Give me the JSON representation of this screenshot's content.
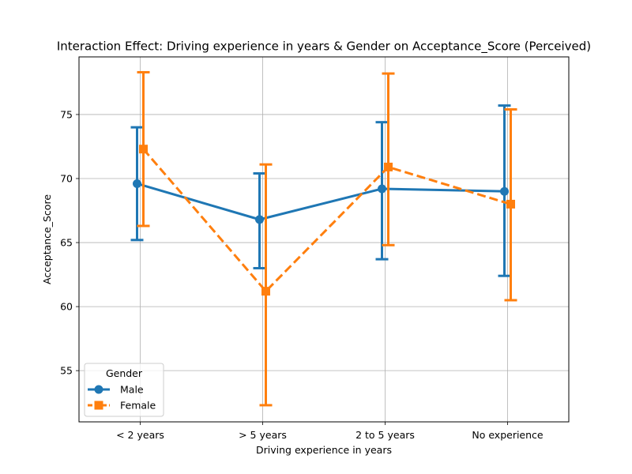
{
  "chart_data": {
    "type": "line",
    "title": "Interaction Effect: Driving experience in years & Gender on Acceptance_Score (Perceived)",
    "xlabel": "Driving experience in years",
    "ylabel": "Acceptance_Score",
    "categories": [
      "< 2 years",
      "> 5 years",
      "2 to 5 years",
      "No experience"
    ],
    "ylim": [
      51.0,
      79.5
    ],
    "yticks": [
      55,
      60,
      65,
      70,
      75
    ],
    "grid": true,
    "legend": {
      "title": "Gender",
      "placement": "lower-left"
    },
    "series": [
      {
        "name": "Male",
        "color": "#1f77b4",
        "marker": "circle",
        "linestyle": "solid",
        "values": [
          69.6,
          66.8,
          69.2,
          69.0
        ],
        "ci_low": [
          65.2,
          63.0,
          63.7,
          62.4
        ],
        "ci_high": [
          74.0,
          70.4,
          74.4,
          75.7
        ]
      },
      {
        "name": "Female",
        "color": "#ff7f0e",
        "marker": "square",
        "linestyle": "dashed",
        "values": [
          72.3,
          61.2,
          70.9,
          68.0
        ],
        "ci_low": [
          66.3,
          52.3,
          64.8,
          60.5
        ],
        "ci_high": [
          78.3,
          71.1,
          78.2,
          75.4
        ]
      }
    ]
  }
}
